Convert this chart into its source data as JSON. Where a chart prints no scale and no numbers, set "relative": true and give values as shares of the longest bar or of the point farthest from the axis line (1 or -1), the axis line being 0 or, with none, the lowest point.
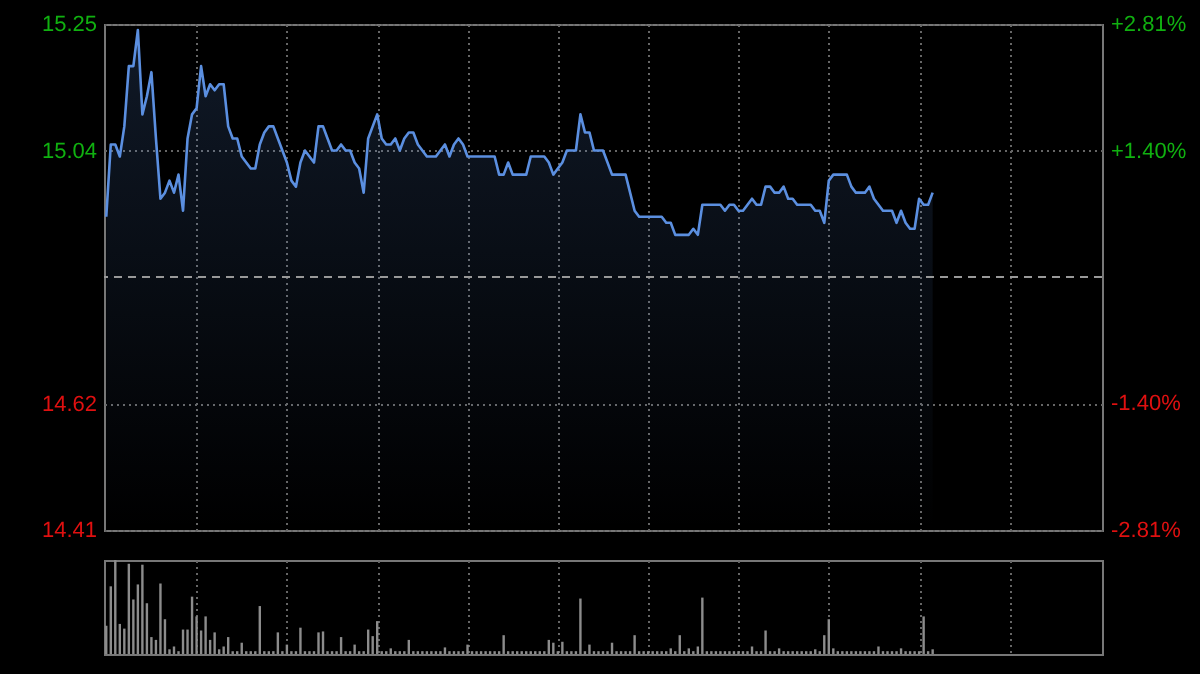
{
  "chart_data": [
    {
      "type": "area",
      "categories": [
        null,
        null,
        null,
        null,
        null,
        null,
        null,
        null,
        null,
        null,
        null,
        null,
        null,
        null,
        null,
        null,
        null,
        null,
        null,
        null,
        null,
        null,
        null,
        null,
        null,
        null,
        null,
        null,
        null,
        null,
        null,
        null,
        null,
        null,
        null,
        null,
        null,
        null,
        null,
        null,
        null,
        null,
        null,
        null,
        null,
        null,
        null,
        null,
        null,
        null,
        null,
        null,
        null,
        null,
        null,
        null,
        null,
        null,
        null,
        null,
        null,
        null,
        null,
        null,
        null,
        null,
        null,
        null,
        null,
        null,
        null,
        null,
        null,
        null,
        null,
        null,
        null,
        null,
        null,
        null,
        null,
        null,
        null,
        null,
        null,
        null,
        null,
        null,
        null,
        null,
        null,
        null,
        null,
        null,
        null,
        null,
        null,
        null,
        null,
        null,
        null,
        null,
        null,
        null,
        null,
        null,
        null,
        null,
        null,
        null,
        null,
        null,
        null,
        null,
        null,
        null,
        null,
        null,
        null,
        null,
        null,
        null,
        null,
        null,
        null,
        null,
        null,
        null,
        null,
        null,
        null,
        null,
        null,
        null,
        null,
        null,
        null,
        null,
        null,
        null,
        null,
        null,
        null,
        null,
        null,
        null,
        null,
        null,
        null,
        null,
        null,
        null,
        null,
        null,
        null,
        null,
        null,
        null,
        null,
        null,
        null,
        null,
        null,
        null,
        null,
        null,
        null,
        null,
        null,
        null,
        null,
        null,
        null,
        null,
        null,
        null,
        null,
        null,
        null,
        null,
        null,
        null,
        null,
        null
      ],
      "ylim": [
        14.41,
        15.25
      ],
      "yticks": [
        15.25,
        15.04,
        14.62,
        14.41
      ],
      "y2lim": [
        -2.81,
        2.81
      ],
      "y2ticks": [
        {
          "value": 2.81,
          "label": "+2.81%"
        },
        {
          "value": 1.4,
          "label": "+1.40%"
        },
        {
          "value": -1.4,
          "label": "-1.40%"
        },
        {
          "value": -2.81,
          "label": "-2.81%"
        }
      ],
      "grid": true,
      "ref_lines": [
        {
          "axis": "y2",
          "value": 0,
          "line_style": "dashed"
        }
      ],
      "series": [
        {
          "color": "#5b8fe0",
          "values": [
            14.93,
            15.05,
            15.05,
            15.03,
            15.08,
            15.18,
            15.18,
            15.24,
            15.1,
            15.13,
            15.17,
            15.06,
            14.96,
            14.97,
            14.99,
            14.97,
            15.0,
            14.94,
            15.06,
            15.1,
            15.11,
            15.18,
            15.13,
            15.15,
            15.14,
            15.15,
            15.15,
            15.08,
            15.06,
            15.06,
            15.03,
            15.02,
            15.01,
            15.01,
            15.05,
            15.07,
            15.08,
            15.08,
            15.06,
            15.04,
            15.02,
            14.99,
            14.98,
            15.02,
            15.04,
            15.03,
            15.02,
            15.08,
            15.08,
            15.06,
            15.04,
            15.04,
            15.05,
            15.04,
            15.04,
            15.02,
            15.01,
            14.97,
            15.06,
            15.08,
            15.1,
            15.06,
            15.05,
            15.05,
            15.06,
            15.04,
            15.06,
            15.07,
            15.07,
            15.05,
            15.04,
            15.03,
            15.03,
            15.03,
            15.04,
            15.05,
            15.03,
            15.05,
            15.06,
            15.05,
            15.03,
            15.03,
            15.03,
            15.03,
            15.03,
            15.03,
            15.03,
            15.0,
            15.0,
            15.02,
            15.0,
            15.0,
            15.0,
            15.0,
            15.03,
            15.03,
            15.03,
            15.03,
            15.02,
            15.0,
            15.01,
            15.02,
            15.04,
            15.04,
            15.04,
            15.1,
            15.07,
            15.07,
            15.04,
            15.04,
            15.04,
            15.02,
            15.0,
            15.0,
            15.0,
            15.0,
            14.97,
            14.94,
            14.93,
            14.93,
            14.93,
            14.93,
            14.93,
            14.93,
            14.92,
            14.92,
            14.9,
            14.9,
            14.9,
            14.9,
            14.91,
            14.9,
            14.95,
            14.95,
            14.95,
            14.95,
            14.95,
            14.94,
            14.95,
            14.95,
            14.94,
            14.94,
            14.95,
            14.96,
            14.95,
            14.95,
            14.98,
            14.98,
            14.97,
            14.97,
            14.98,
            14.96,
            14.96,
            14.95,
            14.95,
            14.95,
            14.95,
            14.94,
            14.94,
            14.92,
            14.99,
            15.0,
            15.0,
            15.0,
            15.0,
            14.98,
            14.97,
            14.97,
            14.97,
            14.98,
            14.96,
            14.95,
            14.94,
            14.94,
            14.94,
            14.92,
            14.94,
            14.92,
            14.91,
            14.91,
            14.96,
            14.95,
            14.95,
            14.97
          ]
        }
      ]
    },
    {
      "type": "bar",
      "relative": true,
      "grid": "x",
      "color": "#8c8c8c",
      "categories": [
        null,
        null,
        null,
        null,
        null,
        null,
        null,
        null,
        null,
        null,
        null,
        null,
        null,
        null,
        null,
        null,
        null,
        null,
        null,
        null,
        null,
        null,
        null,
        null,
        null,
        null,
        null,
        null,
        null,
        null,
        null,
        null,
        null,
        null,
        null,
        null,
        null,
        null,
        null,
        null,
        null,
        null,
        null,
        null,
        null,
        null,
        null,
        null,
        null,
        null,
        null,
        null,
        null,
        null,
        null,
        null,
        null,
        null,
        null,
        null,
        null,
        null,
        null,
        null,
        null,
        null,
        null,
        null,
        null,
        null,
        null,
        null,
        null,
        null,
        null,
        null,
        null,
        null,
        null,
        null,
        null,
        null,
        null,
        null,
        null,
        null,
        null,
        null,
        null,
        null,
        null,
        null,
        null,
        null,
        null,
        null,
        null,
        null,
        null,
        null,
        null,
        null,
        null,
        null,
        null,
        null,
        null,
        null,
        null,
        null,
        null,
        null,
        null,
        null,
        null,
        null,
        null,
        null,
        null,
        null,
        null,
        null,
        null,
        null,
        null,
        null,
        null,
        null,
        null,
        null,
        null,
        null,
        null,
        null,
        null,
        null,
        null,
        null,
        null,
        null,
        null,
        null,
        null,
        null,
        null,
        null,
        null,
        null,
        null,
        null,
        null,
        null,
        null,
        null,
        null,
        null,
        null,
        null,
        null,
        null,
        null,
        null,
        null,
        null,
        null,
        null,
        null,
        null,
        null,
        null,
        null,
        null,
        null,
        null,
        null,
        null,
        null,
        null,
        null,
        null,
        null,
        null,
        null,
        null
      ],
      "values": [
        0.3,
        0.72,
        1,
        0.32,
        0.27,
        0.96,
        0.58,
        0.74,
        0.95,
        0.54,
        0.18,
        0.15,
        0.75,
        0.37,
        0.05,
        0.08,
        0.03,
        0.26,
        0.26,
        0.61,
        0.4,
        0.25,
        0.4,
        0.15,
        0.23,
        0.05,
        0.08,
        0.18,
        0.03,
        0.03,
        0.12,
        0.03,
        0.03,
        0.03,
        0.51,
        0.03,
        0.03,
        0.03,
        0.23,
        0.03,
        0.1,
        0.03,
        0.03,
        0.28,
        0.03,
        0.03,
        0.03,
        0.23,
        0.24,
        0.03,
        0.03,
        0.03,
        0.18,
        0.03,
        0.03,
        0.1,
        0.03,
        0.03,
        0.26,
        0.19,
        0.35,
        0.03,
        0.03,
        0.06,
        0.03,
        0.03,
        0.03,
        0.15,
        0.03,
        0.03,
        0.03,
        0.03,
        0.03,
        0.03,
        0.03,
        0.07,
        0.03,
        0.03,
        0.03,
        0.03,
        0.1,
        0.03,
        0.03,
        0.03,
        0.03,
        0.03,
        0.03,
        0.03,
        0.2,
        0.03,
        0.03,
        0.03,
        0.03,
        0.03,
        0.03,
        0.03,
        0.03,
        0.03,
        0.15,
        0.12,
        0.03,
        0.13,
        0.03,
        0.03,
        0.03,
        0.59,
        0.03,
        0.1,
        0.03,
        0.03,
        0.03,
        0.03,
        0.12,
        0.03,
        0.03,
        0.03,
        0.03,
        0.2,
        0.03,
        0.03,
        0.03,
        0.03,
        0.03,
        0.03,
        0.03,
        0.06,
        0.03,
        0.2,
        0.03,
        0.06,
        0.03,
        0.08,
        0.6,
        0.03,
        0.03,
        0.03,
        0.03,
        0.03,
        0.03,
        0.03,
        0.03,
        0.03,
        0.03,
        0.08,
        0.03,
        0.03,
        0.25,
        0.03,
        0.03,
        0.06,
        0.03,
        0.03,
        0.03,
        0.03,
        0.03,
        0.03,
        0.03,
        0.05,
        0.03,
        0.2,
        0.37,
        0.06,
        0.03,
        0.03,
        0.03,
        0.03,
        0.03,
        0.03,
        0.03,
        0.03,
        0.03,
        0.08,
        0.03,
        0.03,
        0.03,
        0.03,
        0.06,
        0.03,
        0.03,
        0.03,
        0.03,
        0.4,
        0.03,
        0.05
      ]
    }
  ]
}
